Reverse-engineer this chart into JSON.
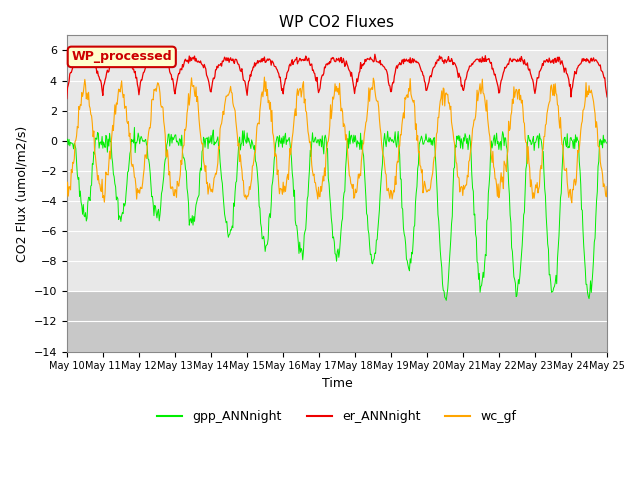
{
  "title": "WP CO2 Fluxes",
  "xlabel": "Time",
  "ylabel": "CO2 Flux (umol/m2/s)",
  "ylim": [
    -14,
    7
  ],
  "yticks": [
    -14,
    -12,
    -10,
    -8,
    -6,
    -4,
    -2,
    0,
    2,
    4,
    6
  ],
  "n_days": 15,
  "n_per_day": 48,
  "x_tick_labels": [
    "May 10",
    "May 11",
    "May 12",
    "May 13",
    "May 14",
    "May 15",
    "May 16",
    "May 17",
    "May 18",
    "May 19",
    "May 20",
    "May 21",
    "May 22",
    "May 23",
    "May 24",
    "May 25"
  ],
  "fig_facecolor": "#ffffff",
  "plot_bg_upper": "#e8e8e8",
  "plot_bg_lower": "#d0d0d0",
  "gpp_color": "#00ee00",
  "er_color": "#ee0000",
  "wc_color": "#ffa500",
  "legend_label_gpp": "gpp_ANNnight",
  "legend_label_er": "er_ANNnight",
  "legend_label_wc": "wc_gf",
  "watermark_text": "WP_processed",
  "watermark_facecolor": "#ffffcc",
  "watermark_edgecolor": "#cc0000",
  "watermark_textcolor": "#cc0000",
  "title_fontsize": 11,
  "axis_fontsize": 9,
  "tick_fontsize": 8,
  "legend_fontsize": 9
}
